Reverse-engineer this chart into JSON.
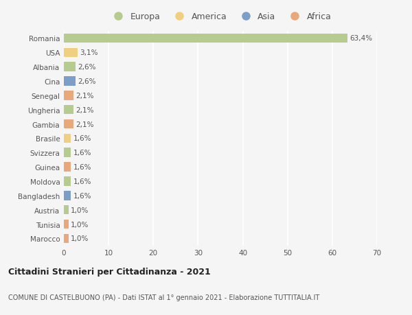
{
  "countries": [
    "Romania",
    "USA",
    "Albania",
    "Cina",
    "Senegal",
    "Ungheria",
    "Gambia",
    "Brasile",
    "Svizzera",
    "Guinea",
    "Moldova",
    "Bangladesh",
    "Austria",
    "Tunisia",
    "Marocco"
  ],
  "values": [
    63.4,
    3.1,
    2.6,
    2.6,
    2.1,
    2.1,
    2.1,
    1.6,
    1.6,
    1.6,
    1.6,
    1.6,
    1.0,
    1.0,
    1.0
  ],
  "labels": [
    "63,4%",
    "3,1%",
    "2,6%",
    "2,6%",
    "2,1%",
    "2,1%",
    "2,1%",
    "1,6%",
    "1,6%",
    "1,6%",
    "1,6%",
    "1,6%",
    "1,0%",
    "1,0%",
    "1,0%"
  ],
  "continents": [
    "Europa",
    "America",
    "Europa",
    "Asia",
    "Africa",
    "Europa",
    "Africa",
    "America",
    "Europa",
    "Africa",
    "Europa",
    "Asia",
    "Europa",
    "Africa",
    "Africa"
  ],
  "continent_colors": {
    "Europa": "#b5cc8e",
    "America": "#f0d080",
    "Asia": "#7b9fc7",
    "Africa": "#e8a87c"
  },
  "legend_order": [
    "Europa",
    "America",
    "Asia",
    "Africa"
  ],
  "xlim": [
    0,
    70
  ],
  "xticks": [
    0,
    10,
    20,
    30,
    40,
    50,
    60,
    70
  ],
  "title_main": "Cittadini Stranieri per Cittadinanza - 2021",
  "title_sub": "COMUNE DI CASTELBUONO (PA) - Dati ISTAT al 1° gennaio 2021 - Elaborazione TUTTITALIA.IT",
  "background_color": "#f5f5f5",
  "grid_color": "#ffffff",
  "bar_height": 0.65,
  "label_fontsize": 7.5,
  "tick_fontsize": 7.5,
  "figsize": [
    6.0,
    4.6
  ],
  "dpi": 100
}
